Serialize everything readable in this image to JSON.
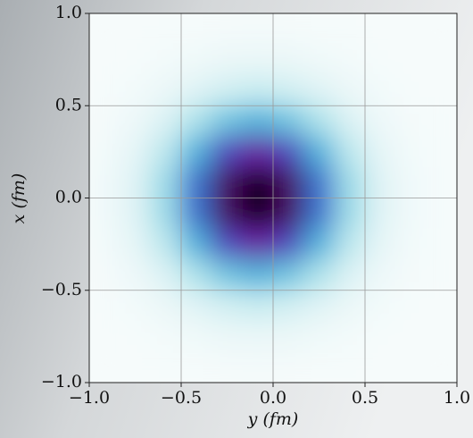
{
  "chart_data": {
    "type": "heatmap",
    "xlabel": "y (fm)",
    "ylabel": "x (fm)",
    "x": [
      -0.917,
      -0.75,
      -0.583,
      -0.417,
      -0.25,
      -0.083,
      0.083,
      0.25,
      0.417,
      0.583,
      0.75,
      0.917
    ],
    "y": [
      0.917,
      0.75,
      0.583,
      0.417,
      0.25,
      0.083,
      -0.083,
      -0.25,
      -0.417,
      -0.583,
      -0.75,
      -0.917
    ],
    "z": [
      [
        0.0,
        0.001,
        0.002,
        0.005,
        0.008,
        0.009,
        0.008,
        0.005,
        0.002,
        0.001,
        0.0,
        0.0
      ],
      [
        0.001,
        0.004,
        0.011,
        0.024,
        0.038,
        0.044,
        0.038,
        0.024,
        0.011,
        0.004,
        0.001,
        0.0
      ],
      [
        0.003,
        0.013,
        0.038,
        0.082,
        0.129,
        0.151,
        0.129,
        0.082,
        0.038,
        0.013,
        0.003,
        0.001
      ],
      [
        0.008,
        0.032,
        0.095,
        0.206,
        0.327,
        0.381,
        0.327,
        0.206,
        0.095,
        0.032,
        0.008,
        0.002
      ],
      [
        0.015,
        0.06,
        0.176,
        0.382,
        0.606,
        0.707,
        0.606,
        0.382,
        0.176,
        0.06,
        0.015,
        0.003
      ],
      [
        0.02,
        0.082,
        0.24,
        0.519,
        0.824,
        0.962,
        0.824,
        0.519,
        0.24,
        0.082,
        0.02,
        0.004
      ],
      [
        0.02,
        0.082,
        0.24,
        0.519,
        0.824,
        0.962,
        0.824,
        0.519,
        0.24,
        0.082,
        0.02,
        0.004
      ],
      [
        0.015,
        0.06,
        0.176,
        0.382,
        0.606,
        0.707,
        0.606,
        0.382,
        0.176,
        0.06,
        0.015,
        0.003
      ],
      [
        0.008,
        0.032,
        0.095,
        0.206,
        0.327,
        0.381,
        0.327,
        0.206,
        0.095,
        0.032,
        0.008,
        0.002
      ],
      [
        0.003,
        0.013,
        0.038,
        0.082,
        0.129,
        0.151,
        0.129,
        0.082,
        0.038,
        0.013,
        0.003,
        0.001
      ],
      [
        0.001,
        0.004,
        0.011,
        0.024,
        0.038,
        0.044,
        0.038,
        0.024,
        0.011,
        0.004,
        0.001,
        0.0
      ],
      [
        0.0,
        0.001,
        0.002,
        0.005,
        0.008,
        0.009,
        0.008,
        0.005,
        0.002,
        0.001,
        0.0,
        0.0
      ]
    ],
    "colormap": [
      "#f6fbfb",
      "#cfeef1",
      "#8ad5e3",
      "#3fa8da",
      "#3a62c9",
      "#7321ad",
      "#4a0a62",
      "#0c0212"
    ],
    "xlim": [
      -1,
      1
    ],
    "ylim": [
      -1,
      1
    ],
    "xticks": [
      {
        "value": -1,
        "label": "−1.0"
      },
      {
        "value": -0.5,
        "label": "−0.5"
      },
      {
        "value": 0,
        "label": "0.0"
      },
      0.5,
      {
        "value": 1,
        "label": "1.0"
      }
    ],
    "yticks": [
      {
        "value": -1,
        "label": "−1.0"
      },
      {
        "value": -0.5,
        "label": "−0.5"
      },
      {
        "value": 0,
        "label": "0.0"
      },
      0.5,
      {
        "value": 1,
        "label": "1.0"
      }
    ],
    "grid": true
  }
}
